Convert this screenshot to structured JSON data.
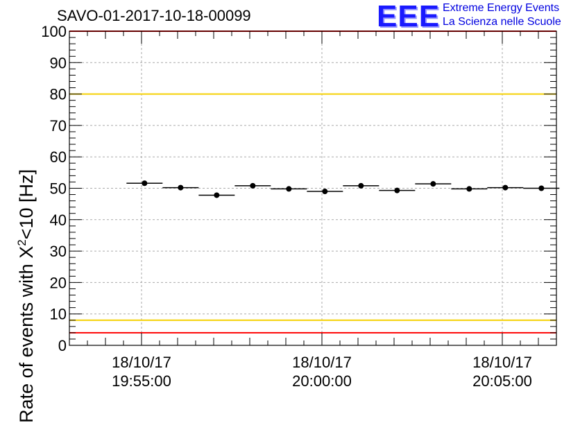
{
  "title": "SAVO-01-2017-10-18-00099",
  "logo": {
    "mark": "EEE",
    "line1": "Extreme Energy Events",
    "line2": "La Scienza nelle Scuole"
  },
  "colors": {
    "red_line": "#ff0000",
    "yellow_line": "#f5d000",
    "grid": "#aaaaaa",
    "marker": "#000000",
    "logo_blue": "#1a1aff"
  },
  "chart_data": {
    "type": "scatter",
    "title": "SAVO-01-2017-10-18-00099",
    "ylabel": "Rate of events with X²<10 [Hz]",
    "ylim": [
      0,
      100
    ],
    "y_ticks": [
      "0",
      "10",
      "20",
      "30",
      "40",
      "50",
      "60",
      "70",
      "80",
      "90",
      "100"
    ],
    "x_ticks": [
      {
        "time": "19:55:00",
        "label_date": "18/10/17",
        "label_time": "19:55:00"
      },
      {
        "time": "20:00:00",
        "label_date": "18/10/17",
        "label_time": "20:00:00"
      },
      {
        "time": "20:05:00",
        "label_date": "18/10/17",
        "label_time": "20:05:00"
      }
    ],
    "x_range": [
      "19:53:00",
      "20:06:30"
    ],
    "series": [
      {
        "x": [
          "19:55:05",
          "19:56:05",
          "19:57:05",
          "19:58:05",
          "19:59:05",
          "20:00:05",
          "20:01:05",
          "20:02:05",
          "20:03:05",
          "20:04:05",
          "20:05:05",
          "20:06:05"
        ],
        "x_err_seconds": 30,
        "y": [
          51.6,
          50.2,
          47.8,
          50.8,
          49.8,
          49.0,
          50.8,
          49.3,
          51.4,
          49.8,
          50.2,
          50.0
        ]
      }
    ],
    "reference_lines": [
      {
        "y": 100,
        "color": "red"
      },
      {
        "y": 80,
        "color": "yellow"
      },
      {
        "y": 8,
        "color": "yellow"
      },
      {
        "y": 4,
        "color": "red"
      }
    ],
    "grid": true
  }
}
